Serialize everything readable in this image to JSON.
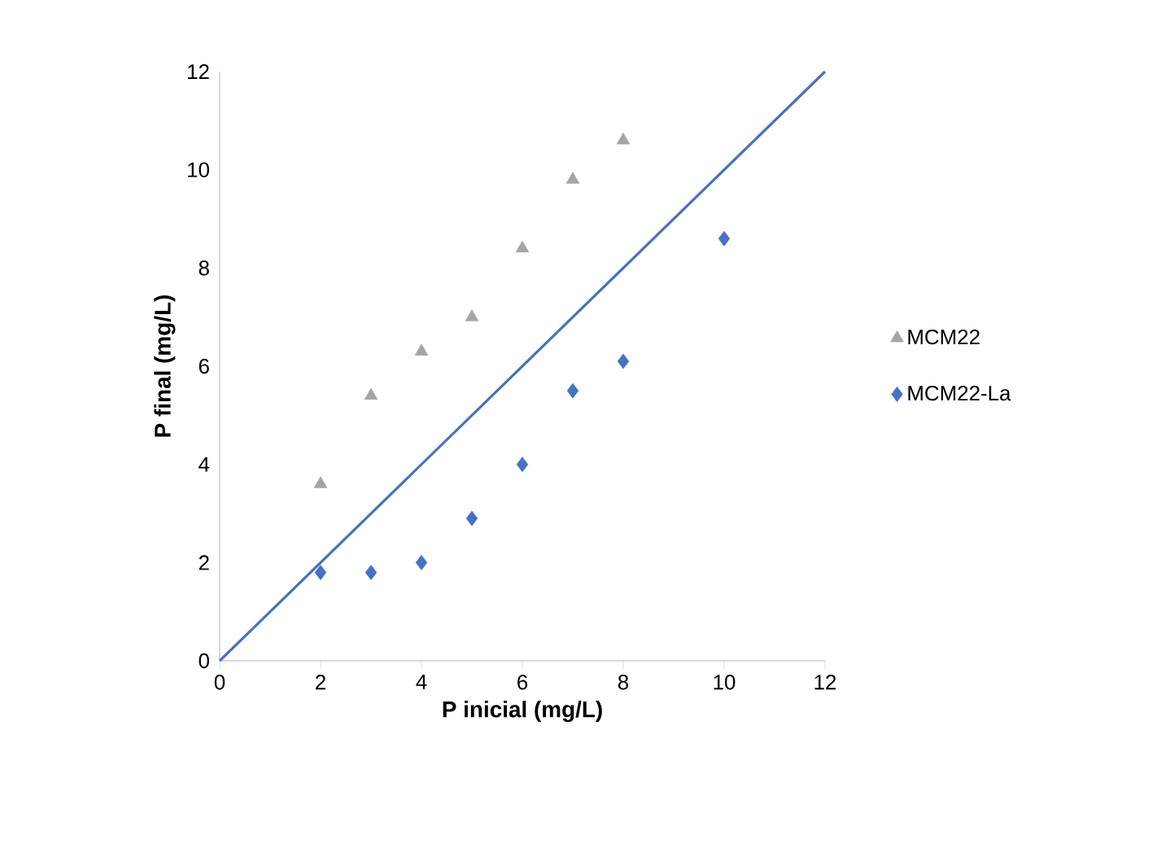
{
  "chart_data": {
    "type": "scatter",
    "xlabel": "P inicial (mg/L)",
    "ylabel": "P final (mg/L)",
    "xlim": [
      0,
      12
    ],
    "ylim": [
      0,
      12
    ],
    "xticks": [
      0,
      2,
      4,
      6,
      8,
      10,
      12
    ],
    "yticks": [
      0,
      2,
      4,
      6,
      8,
      10,
      12
    ],
    "grid": false,
    "legend": "right",
    "series": [
      {
        "name": "MCM22",
        "color": "#a5a5a5",
        "marker": "triangle",
        "x": [
          2,
          3,
          4,
          5,
          6,
          7,
          8
        ],
        "values": [
          3.6,
          5.4,
          6.3,
          7.0,
          8.4,
          9.8,
          10.6
        ]
      },
      {
        "name": "MCM22-La",
        "color": "#4472c4",
        "marker": "diamond",
        "x": [
          2,
          3,
          4,
          5,
          6,
          7,
          8,
          10
        ],
        "values": [
          1.8,
          1.8,
          2.0,
          2.9,
          4.0,
          5.5,
          6.1,
          8.6
        ]
      },
      {
        "type": "line",
        "color": "#4472c4",
        "marker": "none",
        "line_style": "solid",
        "x": [
          0,
          12
        ],
        "values": [
          0,
          12
        ]
      }
    ]
  }
}
